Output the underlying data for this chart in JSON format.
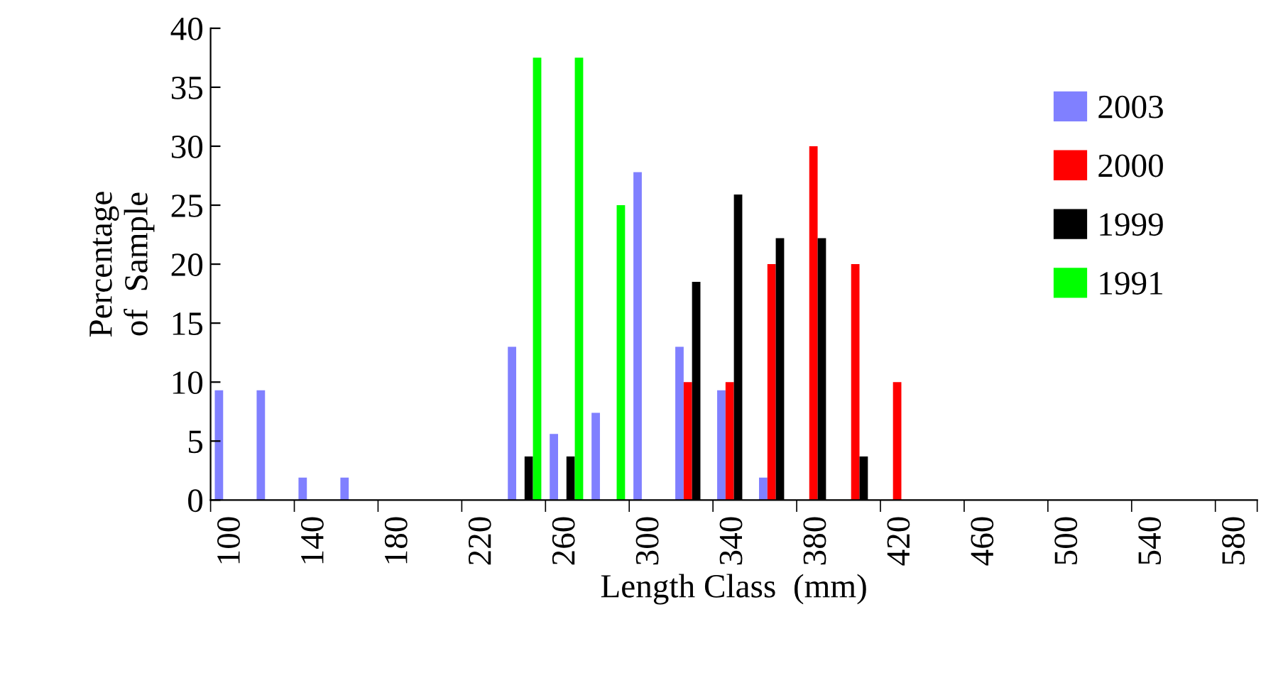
{
  "chart_data": {
    "type": "bar",
    "xlabel": "Length Class  (mm)",
    "ylabel": "Percentage\nof  Sample",
    "categories": [
      "100",
      null,
      "140",
      null,
      "180",
      null,
      "220",
      null,
      "260",
      null,
      "300",
      null,
      "340",
      null,
      "380",
      null,
      "420",
      null,
      "460",
      null,
      "500",
      null,
      "540",
      null,
      "580"
    ],
    "series": [
      {
        "name": "2003",
        "color": "#8080ff",
        "values": [
          9.3,
          9.3,
          1.9,
          1.9,
          0,
          0,
          0,
          13,
          5.6,
          7.4,
          27.8,
          13,
          9.3,
          1.9,
          0,
          0,
          0,
          0,
          0,
          0,
          0,
          0,
          0,
          0,
          0
        ]
      },
      {
        "name": "2000",
        "color": "#ff0000",
        "values": [
          0,
          0,
          0,
          0,
          0,
          0,
          0,
          0,
          0,
          0,
          0,
          10,
          10,
          20,
          30,
          20,
          10,
          0,
          0,
          0,
          0,
          0,
          0,
          0,
          0
        ]
      },
      {
        "name": "1999",
        "color": "#000000",
        "values": [
          0,
          0,
          0,
          0,
          0,
          0,
          0,
          3.7,
          3.7,
          0,
          0,
          18.5,
          25.9,
          22.2,
          22.2,
          3.7,
          0,
          0,
          0,
          0,
          0,
          0,
          0,
          0,
          0
        ]
      },
      {
        "name": "1991",
        "color": "#00ff00",
        "values": [
          0,
          0,
          0,
          0,
          0,
          0,
          0,
          37.5,
          37.5,
          25,
          0,
          0,
          0,
          0,
          0,
          0,
          0,
          0,
          0,
          0,
          0,
          0,
          0,
          0,
          0
        ]
      }
    ],
    "ylim": [
      0,
      40
    ],
    "yticks": [
      0,
      5,
      10,
      15,
      20,
      25,
      30,
      35,
      40
    ],
    "grid": false,
    "legend": "right"
  }
}
